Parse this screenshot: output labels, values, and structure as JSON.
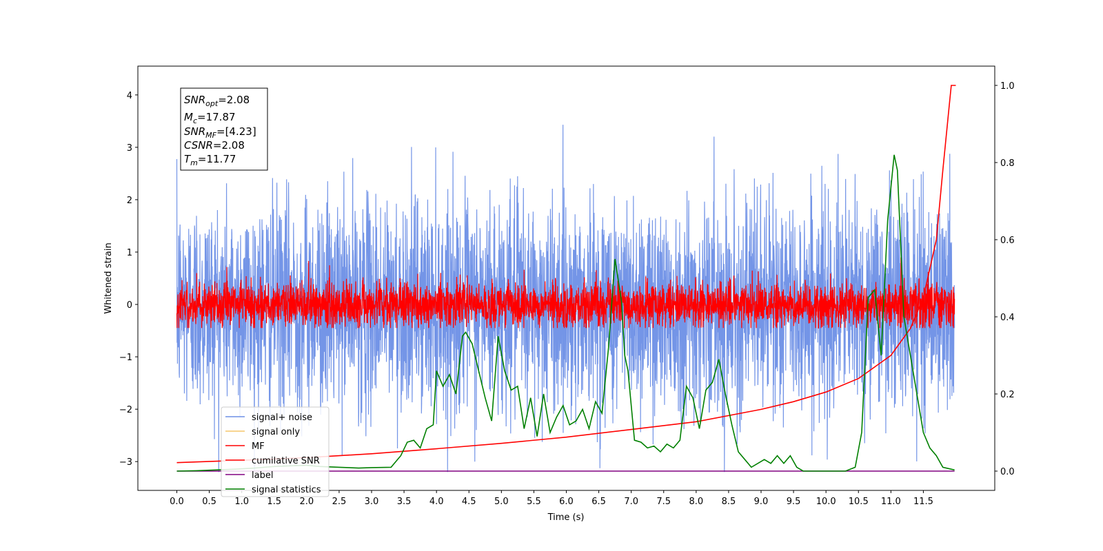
{
  "chart_data": {
    "type": "line",
    "xlabel": "Time (s)",
    "ylabel": "Whitened strain",
    "xlim": [
      -0.6,
      12.6
    ],
    "ylim_left": [
      -3.55,
      4.55
    ],
    "ylim_right": [
      -0.05,
      1.05
    ],
    "x_ticks": [
      "0.0",
      "0.5",
      "1.0",
      "1.5",
      "2.0",
      "2.5",
      "3.0",
      "3.5",
      "4.0",
      "4.5",
      "5.0",
      "5.5",
      "6.0",
      "6.5",
      "7.0",
      "7.5",
      "8.0",
      "8.5",
      "9.0",
      "9.5",
      "10.0",
      "10.5",
      "11.0",
      "11.5"
    ],
    "y_ticks_left": [
      "−3",
      "−2",
      "−1",
      "0",
      "1",
      "2",
      "3",
      "4"
    ],
    "y_ticks_right": [
      "0.0",
      "0.2",
      "0.4",
      "0.6",
      "0.8",
      "1.0"
    ],
    "info_box": {
      "snr_opt": "=2.08",
      "mc": "=17.87",
      "snr_mf": "=[4.23]",
      "csnr": "=2.08",
      "tm": "=11.77"
    },
    "series": [
      {
        "name": "signal+ noise",
        "axis": "left",
        "color": "#6d8fe6",
        "t_start": 0.0,
        "t_end": 11.98,
        "std": 1.0,
        "clip": [
          -3.2,
          4.2
        ]
      },
      {
        "name": "signal only",
        "axis": "left",
        "color": "#f5c56a",
        "x": [],
        "y": []
      },
      {
        "name": "MF",
        "axis": "left",
        "color": "#ff0000",
        "t_start": 0.0,
        "t_end": 11.98,
        "std": 0.22,
        "clip": [
          -0.45,
          0.9
        ]
      },
      {
        "name": "cumilative SNR",
        "axis": "right",
        "color": "#ff0000",
        "x": [
          0.0,
          1.0,
          2.0,
          3.0,
          4.0,
          5.0,
          6.0,
          7.0,
          8.0,
          9.0,
          9.5,
          10.0,
          10.5,
          11.0,
          11.3,
          11.5,
          11.7,
          11.8,
          11.9,
          11.93,
          12.0
        ],
        "y": [
          0.022,
          0.028,
          0.035,
          0.045,
          0.058,
          0.072,
          0.088,
          0.108,
          0.128,
          0.16,
          0.18,
          0.205,
          0.24,
          0.3,
          0.37,
          0.45,
          0.6,
          0.78,
          0.95,
          1.0,
          1.0
        ]
      },
      {
        "name": "label",
        "axis": "right",
        "color": "#800080",
        "x": [
          0.0,
          11.98
        ],
        "y": [
          0.0,
          0.0
        ]
      },
      {
        "name": "signal statistics",
        "axis": "right",
        "color": "#008000",
        "x": [
          0.0,
          0.3,
          0.6,
          0.9,
          1.2,
          1.5,
          1.8,
          2.0,
          2.2,
          2.5,
          2.8,
          3.0,
          3.3,
          3.45,
          3.55,
          3.65,
          3.75,
          3.85,
          3.95,
          4.0,
          4.1,
          4.2,
          4.3,
          4.4,
          4.45,
          4.55,
          4.65,
          4.75,
          4.85,
          4.95,
          5.05,
          5.15,
          5.25,
          5.35,
          5.45,
          5.55,
          5.65,
          5.75,
          5.85,
          5.95,
          6.05,
          6.15,
          6.25,
          6.35,
          6.45,
          6.55,
          6.65,
          6.75,
          6.85,
          6.9,
          6.95,
          7.05,
          7.15,
          7.25,
          7.35,
          7.45,
          7.55,
          7.65,
          7.75,
          7.85,
          7.95,
          8.05,
          8.15,
          8.25,
          8.35,
          8.45,
          8.55,
          8.65,
          8.75,
          8.85,
          8.95,
          9.05,
          9.15,
          9.25,
          9.35,
          9.45,
          9.55,
          9.65,
          9.75,
          9.9,
          10.1,
          10.3,
          10.45,
          10.55,
          10.65,
          10.75,
          10.85,
          10.95,
          11.05,
          11.1,
          11.2,
          11.3,
          11.4,
          11.5,
          11.6,
          11.7,
          11.8,
          11.98
        ],
        "y": [
          0.0,
          0.001,
          0.003,
          0.005,
          0.008,
          0.012,
          0.014,
          0.015,
          0.012,
          0.01,
          0.008,
          0.009,
          0.01,
          0.04,
          0.075,
          0.08,
          0.06,
          0.11,
          0.12,
          0.26,
          0.22,
          0.25,
          0.2,
          0.35,
          0.36,
          0.33,
          0.26,
          0.19,
          0.13,
          0.35,
          0.26,
          0.21,
          0.22,
          0.11,
          0.19,
          0.09,
          0.2,
          0.1,
          0.14,
          0.17,
          0.12,
          0.13,
          0.16,
          0.11,
          0.18,
          0.15,
          0.32,
          0.55,
          0.44,
          0.3,
          0.26,
          0.08,
          0.075,
          0.06,
          0.065,
          0.05,
          0.07,
          0.06,
          0.08,
          0.22,
          0.19,
          0.11,
          0.21,
          0.23,
          0.29,
          0.2,
          0.12,
          0.05,
          0.03,
          0.01,
          0.02,
          0.03,
          0.02,
          0.04,
          0.02,
          0.04,
          0.01,
          0.0,
          0.0,
          0.0,
          0.0,
          0.0,
          0.01,
          0.1,
          0.45,
          0.47,
          0.3,
          0.65,
          0.82,
          0.78,
          0.4,
          0.3,
          0.2,
          0.1,
          0.06,
          0.04,
          0.01,
          0.003
        ]
      }
    ],
    "legend": {
      "position": "lower-left",
      "entries": [
        "signal+ noise",
        "signal only",
        "MF",
        "cumilative SNR",
        "label",
        "signal statistics"
      ]
    }
  }
}
